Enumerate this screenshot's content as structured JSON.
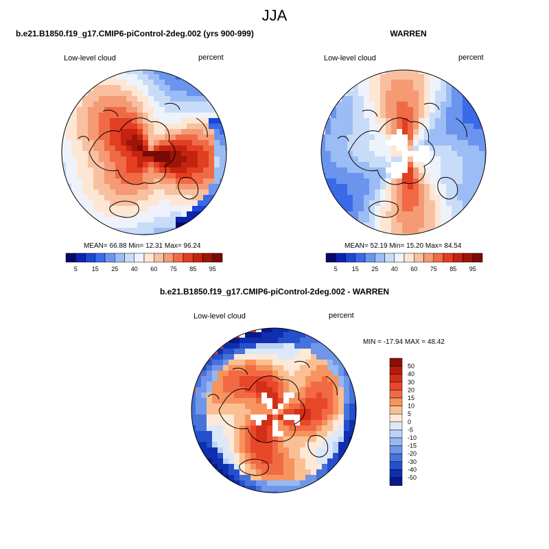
{
  "figure": {
    "title": "JJA"
  },
  "colors": {
    "coast": "#000000",
    "missing": "#ffffff"
  },
  "chart_data": [
    {
      "type": "heatmap",
      "title": "b.e21.B1850.f19_g17.CMIP6-piControl-2deg.002 (yrs 900-999)",
      "left_label": "Low-level cloud",
      "right_label": "percent",
      "stats": {
        "mean_label": "MEAN=",
        "mean": "66.88",
        "min_label": "Min=",
        "min": "12.31",
        "max_label": "Max=",
        "max": "96.24"
      },
      "colorbar": {
        "orientation": "horizontal",
        "levels": [
          5,
          10,
          15,
          20,
          25,
          30,
          40,
          50,
          60,
          70,
          75,
          80,
          85,
          90,
          95
        ],
        "labels": [
          "5",
          "15",
          "25",
          "40",
          "60",
          "75",
          "85",
          "95"
        ],
        "colors": [
          "#08086b",
          "#0c22b0",
          "#1b46d8",
          "#3a6ae8",
          "#6b94ef",
          "#9bbcf4",
          "#c8dcf8",
          "#eef3fb",
          "#fde6d4",
          "#f8c0a0",
          "#f49a74",
          "#ef6a45",
          "#e23e22",
          "#c32310",
          "#9d1508",
          "#7a0a04"
        ]
      }
    },
    {
      "type": "heatmap",
      "title": "WARREN",
      "left_label": "Low-level cloud",
      "right_label": "percent",
      "stats": {
        "mean_label": "MEAN=",
        "mean": "52.19",
        "min_label": "Min=",
        "min": "15.20",
        "max_label": "Max=",
        "max": "84.54"
      },
      "colorbar": {
        "orientation": "horizontal",
        "levels": [
          5,
          10,
          15,
          20,
          25,
          30,
          40,
          50,
          60,
          70,
          75,
          80,
          85,
          90,
          95
        ],
        "labels": [
          "5",
          "15",
          "25",
          "40",
          "60",
          "75",
          "85",
          "95"
        ],
        "colors": [
          "#08086b",
          "#0c22b0",
          "#1b46d8",
          "#3a6ae8",
          "#6b94ef",
          "#9bbcf4",
          "#c8dcf8",
          "#eef3fb",
          "#fde6d4",
          "#f8c0a0",
          "#f49a74",
          "#ef6a45",
          "#e23e22",
          "#c32310",
          "#9d1508",
          "#7a0a04"
        ]
      }
    },
    {
      "type": "heatmap",
      "title": "b.e21.B1850.f19_g17.CMIP6-piControl-2deg.002 - WARREN",
      "left_label": "Low-level cloud",
      "right_label": "percent",
      "stats": {
        "text": "MIN = -17.94 MAX =  48.42"
      },
      "colorbar": {
        "orientation": "vertical",
        "labels": [
          "50",
          "40",
          "30",
          "20",
          "15",
          "10",
          "5",
          "0",
          "-5",
          "-10",
          "-15",
          "-20",
          "-30",
          "-40",
          "-50"
        ],
        "colors": [
          "#8c0f05",
          "#b31c0c",
          "#d22f18",
          "#e8472a",
          "#f26a44",
          "#f7935f",
          "#fabf93",
          "#fde9d7",
          "#dce8f8",
          "#bcd2f5",
          "#97b7f0",
          "#6f96e8",
          "#4672dc",
          "#2550cc",
          "#0f2fb0",
          "#061a88"
        ]
      }
    }
  ]
}
